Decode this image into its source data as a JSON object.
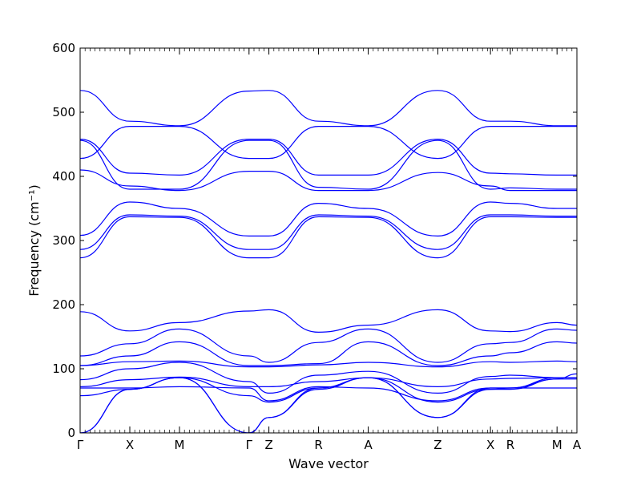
{
  "chart_data": {
    "type": "line",
    "xlabel": "Wave vector",
    "ylabel": "Frequency (cm⁻¹)",
    "ylim": [
      0,
      600
    ],
    "yticks": [
      0,
      100,
      200,
      300,
      400,
      500,
      600
    ],
    "x_ticks": [
      {
        "label": "Γ",
        "x": 0
      },
      {
        "label": "X",
        "x": 0.5
      },
      {
        "label": "M",
        "x": 1.0
      },
      {
        "label": "Γ",
        "x": 1.7
      },
      {
        "label": "Z",
        "x": 1.9
      },
      {
        "label": "R",
        "x": 2.4
      },
      {
        "label": "A",
        "x": 2.9
      },
      {
        "label": "Z",
        "x": 3.6
      },
      {
        "label": "X",
        "x": 4.13
      },
      {
        "label": "R",
        "x": 4.33
      },
      {
        "label": "M",
        "x": 4.8
      },
      {
        "label": "A",
        "x": 5.0
      }
    ],
    "xlim": [
      0,
      5.0
    ],
    "line_color": "#0000ff",
    "series": [
      {
        "x": [
          0,
          0.5,
          1.0,
          1.7,
          1.9,
          2.4,
          2.9,
          3.6,
          4.13,
          4.33,
          4.8,
          5.0
        ],
        "y": [
          534,
          486,
          479,
          533,
          534,
          486,
          479,
          534,
          486,
          486,
          479,
          479
        ]
      },
      {
        "x": [
          0,
          0.5,
          1.0,
          1.7,
          1.9,
          2.4,
          2.9,
          3.6,
          4.13,
          4.33,
          4.8,
          5.0
        ],
        "y": [
          428,
          478,
          478,
          428,
          428,
          478,
          478,
          428,
          478,
          478,
          478,
          478
        ]
      },
      {
        "x": [
          0,
          0.5,
          1.0,
          1.7,
          1.9,
          2.4,
          2.9,
          3.6,
          4.13,
          4.33,
          4.8,
          5.0
        ],
        "y": [
          458,
          405,
          402,
          458,
          458,
          402,
          402,
          458,
          405,
          404,
          402,
          402
        ]
      },
      {
        "x": [
          0,
          0.5,
          1.0,
          1.7,
          1.9,
          2.4,
          2.9,
          3.6,
          4.13,
          4.33,
          4.8,
          5.0
        ],
        "y": [
          456,
          380,
          380,
          456,
          456,
          383,
          380,
          456,
          380,
          382,
          380,
          380
        ]
      },
      {
        "x": [
          0,
          0.5,
          1.0,
          1.7,
          1.9,
          2.4,
          2.9,
          3.6,
          4.13,
          4.33,
          4.8,
          5.0
        ],
        "y": [
          410,
          385,
          378,
          408,
          408,
          378,
          378,
          406,
          385,
          378,
          378,
          378
        ]
      },
      {
        "x": [
          0,
          0.5,
          1.0,
          1.7,
          1.9,
          2.4,
          2.9,
          3.6,
          4.13,
          4.33,
          4.8,
          5.0
        ],
        "y": [
          308,
          360,
          350,
          307,
          307,
          358,
          350,
          307,
          360,
          358,
          350,
          350
        ]
      },
      {
        "x": [
          0,
          0.5,
          1.0,
          1.7,
          1.9,
          2.4,
          2.9,
          3.6,
          4.13,
          4.33,
          4.8,
          5.0
        ],
        "y": [
          286,
          340,
          338,
          286,
          286,
          340,
          338,
          286,
          340,
          340,
          338,
          338
        ]
      },
      {
        "x": [
          0,
          0.5,
          1.0,
          1.7,
          1.9,
          2.4,
          2.9,
          3.6,
          4.13,
          4.33,
          4.8,
          5.0
        ],
        "y": [
          273,
          337,
          336,
          273,
          273,
          337,
          336,
          273,
          337,
          337,
          336,
          336
        ]
      },
      {
        "x": [
          0,
          0.5,
          1.0,
          1.7,
          1.9,
          2.4,
          2.9,
          3.6,
          4.13,
          4.33,
          4.8,
          5.0
        ],
        "y": [
          189,
          159,
          172,
          190,
          192,
          157,
          168,
          192,
          159,
          158,
          172,
          168
        ]
      },
      {
        "x": [
          0,
          0.5,
          1.0,
          1.7,
          1.9,
          2.4,
          2.9,
          3.6,
          4.13,
          4.33,
          4.8,
          5.0
        ],
        "y": [
          120,
          139,
          162,
          120,
          110,
          141,
          162,
          110,
          139,
          141,
          162,
          160
        ]
      },
      {
        "x": [
          0,
          0.5,
          1.0,
          1.7,
          1.9,
          2.4,
          2.9,
          3.6,
          4.13,
          4.33,
          4.8,
          5.0
        ],
        "y": [
          105,
          120,
          142,
          105,
          105,
          108,
          142,
          105,
          120,
          125,
          142,
          140
        ]
      },
      {
        "x": [
          0,
          0.5,
          1.0,
          1.7,
          1.9,
          2.4,
          2.9,
          3.6,
          4.13,
          4.33,
          4.8,
          5.0
        ],
        "y": [
          105,
          111,
          112,
          103,
          103,
          106,
          110,
          103,
          111,
          110,
          112,
          111
        ]
      },
      {
        "x": [
          0,
          0.5,
          1.0,
          1.7,
          1.9,
          2.4,
          2.9,
          3.6,
          4.13,
          4.33,
          4.8,
          5.0
        ],
        "y": [
          83,
          100,
          110,
          80,
          62,
          90,
          96,
          62,
          88,
          90,
          86,
          86
        ]
      },
      {
        "x": [
          0,
          0.5,
          1.0,
          1.7,
          1.9,
          2.4,
          2.9,
          3.6,
          4.13,
          4.33,
          4.8,
          5.0
        ],
        "y": [
          72,
          83,
          87,
          72,
          72,
          80,
          86,
          72,
          84,
          85,
          86,
          86
        ]
      },
      {
        "x": [
          0,
          0.5,
          1.0,
          1.7,
          1.9,
          2.4,
          2.9,
          3.6,
          4.13,
          4.33,
          4.8,
          5.0
        ],
        "y": [
          70,
          70,
          72,
          70,
          50,
          72,
          70,
          50,
          70,
          70,
          70,
          70
        ]
      },
      {
        "x": [
          0,
          0.5,
          1.0,
          1.7,
          1.9,
          2.4,
          2.9,
          3.6,
          4.13,
          4.33,
          4.8,
          5.0
        ],
        "y": [
          58,
          68,
          86,
          58,
          48,
          70,
          86,
          48,
          68,
          68,
          84,
          84
        ]
      },
      {
        "x": [
          0,
          0.5,
          1.0,
          1.7,
          1.9,
          2.4,
          2.9,
          3.6,
          4.13,
          4.33,
          4.8,
          5.0
        ],
        "y": [
          0,
          68,
          86,
          0,
          24,
          70,
          86,
          24,
          68,
          70,
          84,
          92
        ]
      },
      {
        "x": [
          0,
          0.5,
          1.0,
          1.7,
          1.9,
          2.4,
          2.9,
          3.6,
          4.13,
          4.33,
          4.8,
          5.0
        ],
        "y": [
          0,
          68,
          86,
          0,
          24,
          68,
          86,
          24,
          70,
          70,
          86,
          86
        ]
      }
    ]
  }
}
